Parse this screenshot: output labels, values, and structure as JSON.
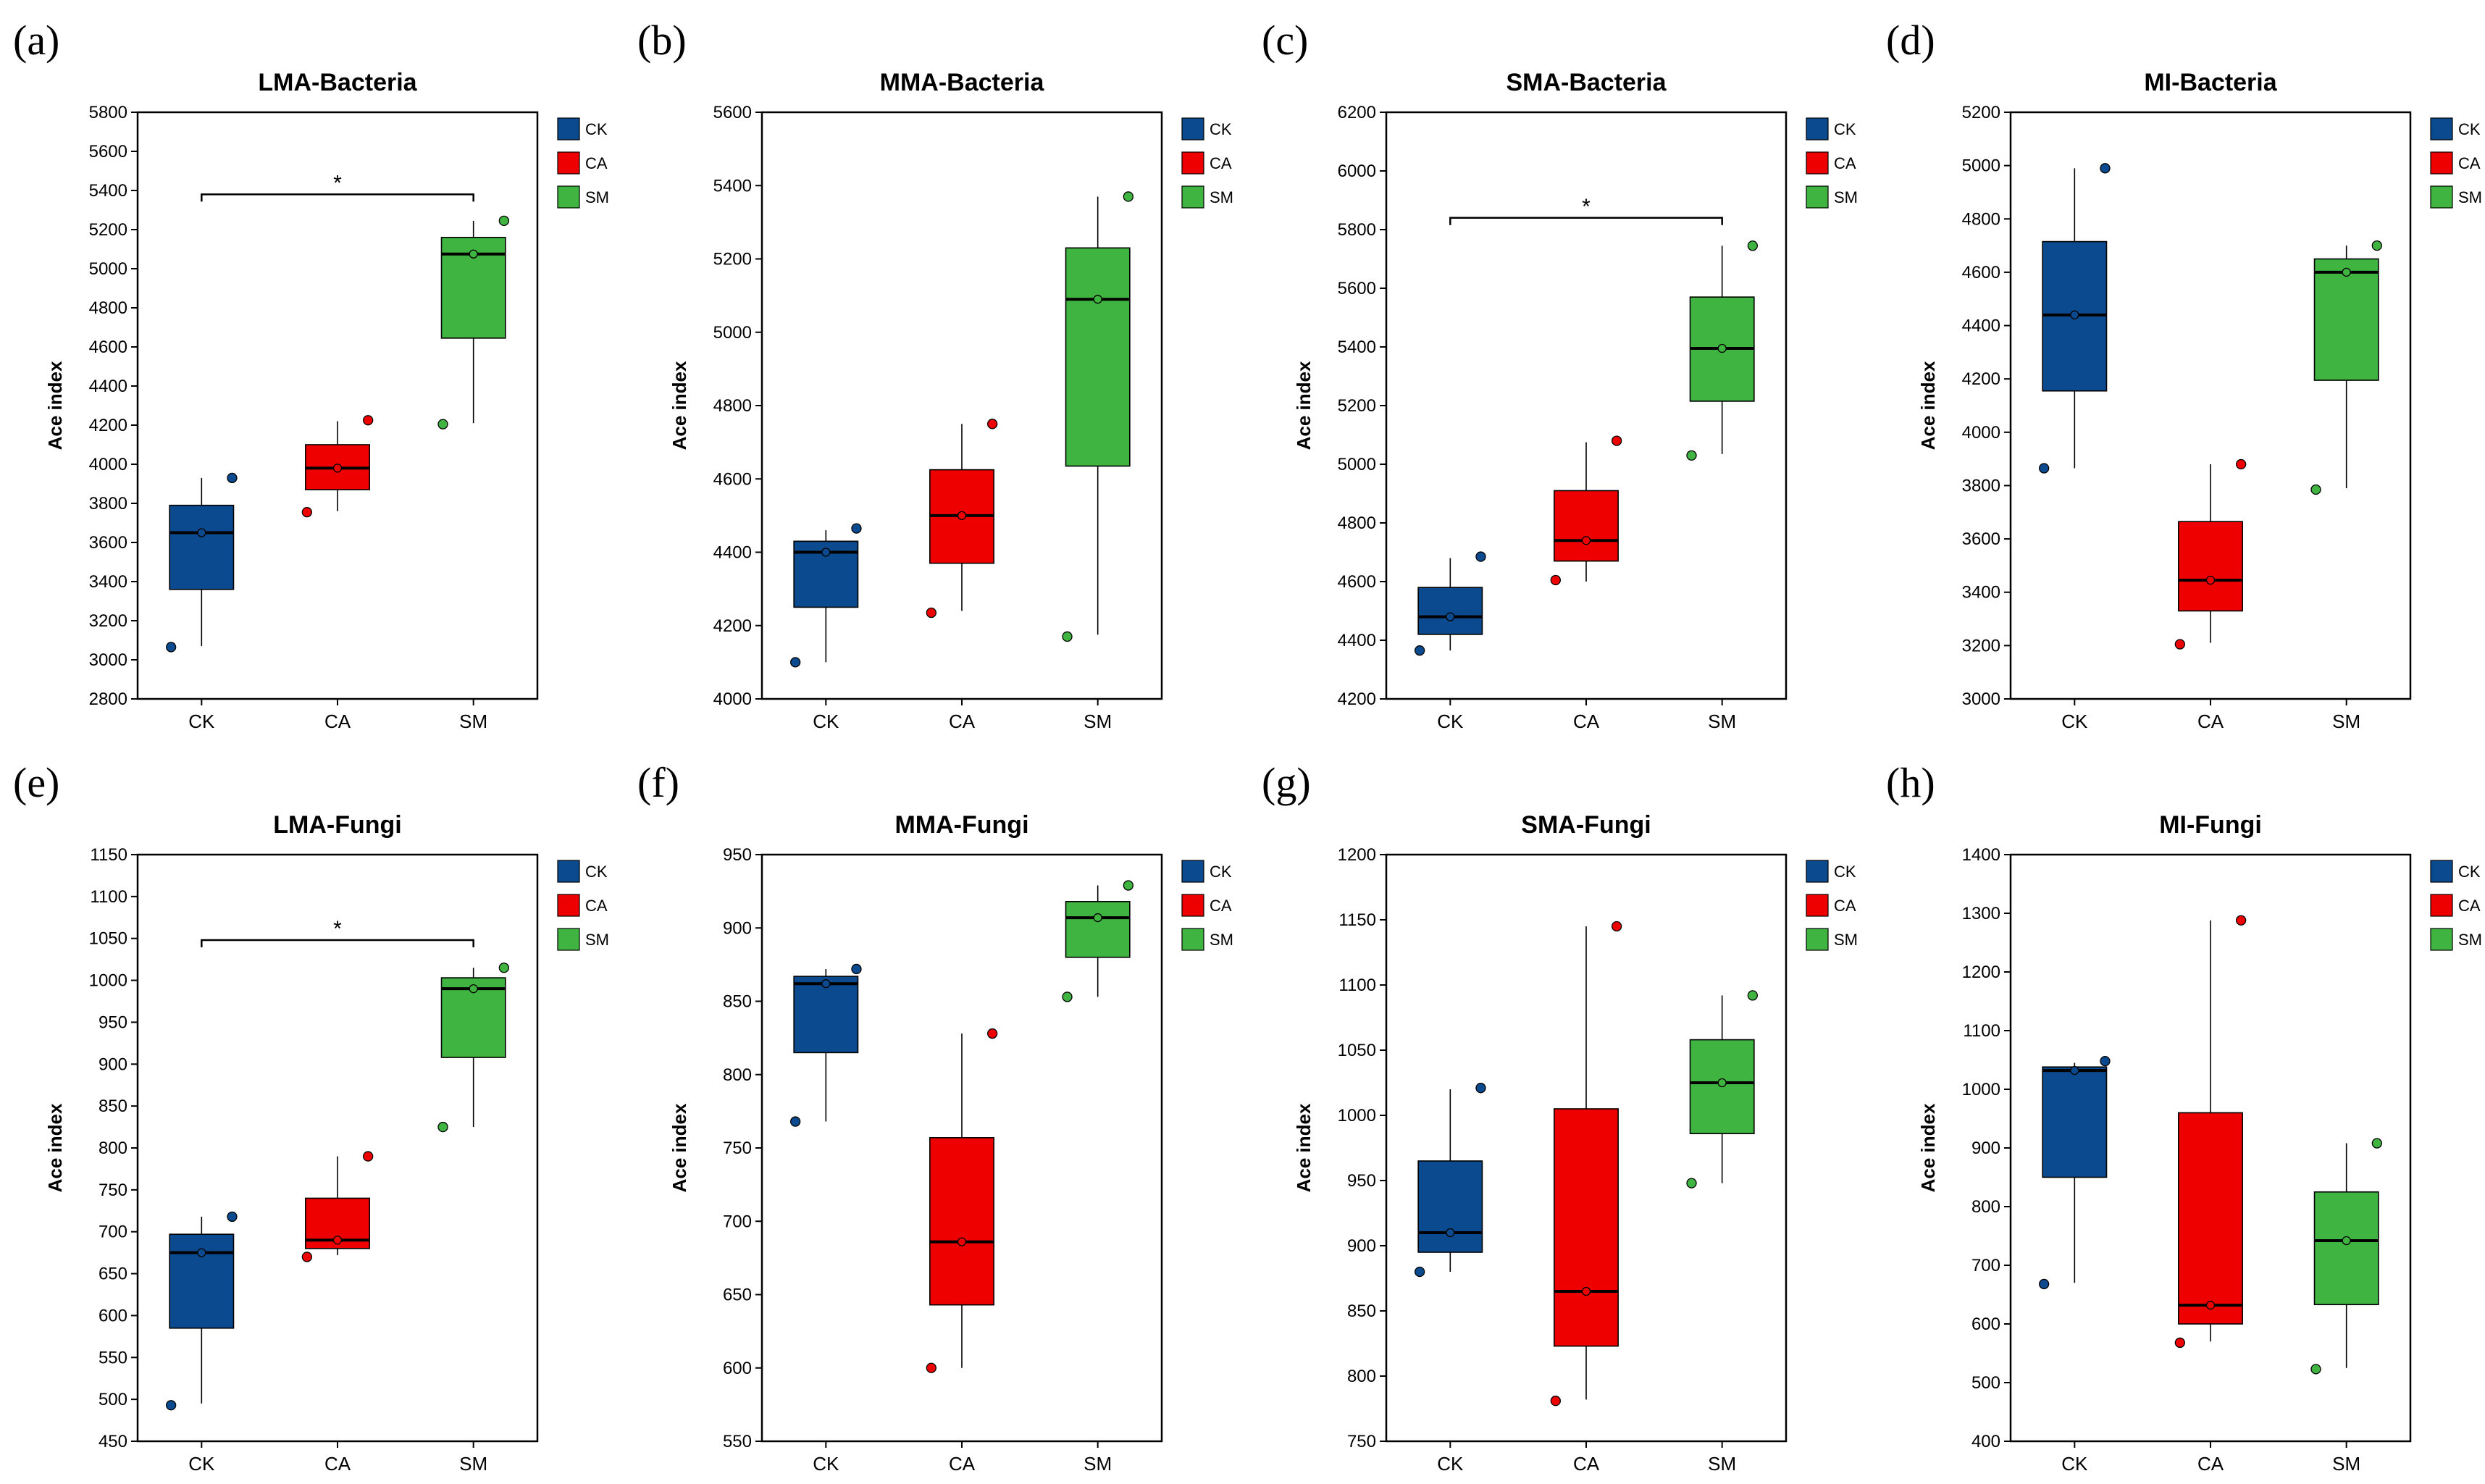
{
  "colors": {
    "CK": "#0b4a8e",
    "CA": "#ee0000",
    "SM": "#40b440"
  },
  "legend": [
    "CK",
    "CA",
    "SM"
  ],
  "chart_data": [
    {
      "panel": "(a)",
      "type": "box",
      "title": "LMA-Bacteria",
      "ylabel": "Ace index",
      "ylim": [
        2800,
        5800
      ],
      "yticks": [
        2800,
        3000,
        3200,
        3400,
        3600,
        3800,
        4000,
        4200,
        4400,
        4600,
        4800,
        5000,
        5200,
        5400,
        5600,
        5800
      ],
      "categories": [
        "CK",
        "CA",
        "SM"
      ],
      "boxes": [
        {
          "group": "CK",
          "whisker_low": 3070,
          "q1": 3360,
          "median": 3650,
          "q3": 3790,
          "whisker_high": 3930,
          "mean": 3650,
          "points": [
            3065,
            3930
          ]
        },
        {
          "group": "CA",
          "whisker_low": 3760,
          "q1": 3870,
          "median": 3980,
          "q3": 4100,
          "whisker_high": 4220,
          "mean": 3980,
          "points": [
            3755,
            4225
          ]
        },
        {
          "group": "SM",
          "whisker_low": 4210,
          "q1": 4645,
          "median": 5075,
          "q3": 5160,
          "whisker_high": 5245,
          "mean": 5075,
          "points": [
            4205,
            5245
          ]
        }
      ],
      "significance": [
        {
          "from": "CK",
          "to": "SM",
          "label": "*",
          "y": 5380
        }
      ]
    },
    {
      "panel": "(b)",
      "type": "box",
      "title": "MMA-Bacteria",
      "ylabel": "Ace index",
      "ylim": [
        4000,
        5600
      ],
      "yticks": [
        4000,
        4200,
        4400,
        4600,
        4800,
        5000,
        5200,
        5400,
        5600
      ],
      "categories": [
        "CK",
        "CA",
        "SM"
      ],
      "boxes": [
        {
          "group": "CK",
          "whisker_low": 4100,
          "q1": 4250,
          "median": 4400,
          "q3": 4430,
          "whisker_high": 4460,
          "mean": 4400,
          "points": [
            4100,
            4465
          ]
        },
        {
          "group": "CA",
          "whisker_low": 4240,
          "q1": 4370,
          "median": 4500,
          "q3": 4625,
          "whisker_high": 4750,
          "mean": 4500,
          "points": [
            4235,
            4750
          ]
        },
        {
          "group": "SM",
          "whisker_low": 4175,
          "q1": 4635,
          "median": 5090,
          "q3": 5230,
          "whisker_high": 5370,
          "mean": 5090,
          "points": [
            4170,
            5370
          ]
        }
      ],
      "significance": []
    },
    {
      "panel": "(c)",
      "type": "box",
      "title": "SMA-Bacteria",
      "ylabel": "Ace index",
      "ylim": [
        4200,
        6200
      ],
      "yticks": [
        4200,
        4400,
        4600,
        4800,
        5000,
        5200,
        5400,
        5600,
        5800,
        6000,
        6200
      ],
      "categories": [
        "CK",
        "CA",
        "SM"
      ],
      "boxes": [
        {
          "group": "CK",
          "whisker_low": 4365,
          "q1": 4420,
          "median": 4480,
          "q3": 4580,
          "whisker_high": 4680,
          "mean": 4480,
          "points": [
            4365,
            4685
          ]
        },
        {
          "group": "CA",
          "whisker_low": 4600,
          "q1": 4670,
          "median": 4740,
          "q3": 4910,
          "whisker_high": 5075,
          "mean": 4740,
          "points": [
            4605,
            5080
          ]
        },
        {
          "group": "SM",
          "whisker_low": 5035,
          "q1": 5215,
          "median": 5395,
          "q3": 5570,
          "whisker_high": 5745,
          "mean": 5395,
          "points": [
            5030,
            5745
          ]
        }
      ],
      "significance": [
        {
          "from": "CK",
          "to": "SM",
          "label": "*",
          "y": 5840
        }
      ]
    },
    {
      "panel": "(d)",
      "type": "box",
      "title": "MI-Bacteria",
      "ylabel": "Ace index",
      "ylim": [
        3000,
        5200
      ],
      "yticks": [
        3000,
        3200,
        3400,
        3600,
        3800,
        4000,
        4200,
        4400,
        4600,
        4800,
        5000,
        5200
      ],
      "categories": [
        "CK",
        "CA",
        "SM"
      ],
      "boxes": [
        {
          "group": "CK",
          "whisker_low": 3865,
          "q1": 4155,
          "median": 4440,
          "q3": 4715,
          "whisker_high": 4990,
          "mean": 4440,
          "points": [
            3865,
            4990
          ]
        },
        {
          "group": "CA",
          "whisker_low": 3210,
          "q1": 3330,
          "median": 3445,
          "q3": 3665,
          "whisker_high": 3880,
          "mean": 3445,
          "points": [
            3205,
            3880
          ]
        },
        {
          "group": "SM",
          "whisker_low": 3790,
          "q1": 4195,
          "median": 4600,
          "q3": 4650,
          "whisker_high": 4700,
          "mean": 4600,
          "points": [
            3785,
            4700
          ]
        }
      ],
      "significance": []
    },
    {
      "panel": "(e)",
      "type": "box",
      "title": "LMA-Fungi",
      "ylabel": "Ace index",
      "ylim": [
        450,
        1150
      ],
      "yticks": [
        450,
        500,
        550,
        600,
        650,
        700,
        750,
        800,
        850,
        900,
        950,
        1000,
        1050,
        1100,
        1150
      ],
      "categories": [
        "CK",
        "CA",
        "SM"
      ],
      "boxes": [
        {
          "group": "CK",
          "whisker_low": 495,
          "q1": 585,
          "median": 675,
          "q3": 697,
          "whisker_high": 718,
          "mean": 675,
          "points": [
            493,
            718
          ]
        },
        {
          "group": "CA",
          "whisker_low": 672,
          "q1": 680,
          "median": 690,
          "q3": 740,
          "whisker_high": 790,
          "mean": 690,
          "points": [
            670,
            790
          ]
        },
        {
          "group": "SM",
          "whisker_low": 825,
          "q1": 908,
          "median": 990,
          "q3": 1003,
          "whisker_high": 1015,
          "mean": 990,
          "points": [
            825,
            1015
          ]
        }
      ],
      "significance": [
        {
          "from": "CK",
          "to": "SM",
          "label": "*",
          "y": 1048
        }
      ]
    },
    {
      "panel": "(f)",
      "type": "box",
      "title": "MMA-Fungi",
      "ylabel": "Ace index",
      "ylim": [
        550,
        950
      ],
      "yticks": [
        550,
        600,
        650,
        700,
        750,
        800,
        850,
        900,
        950
      ],
      "categories": [
        "CK",
        "CA",
        "SM"
      ],
      "boxes": [
        {
          "group": "CK",
          "whisker_low": 768,
          "q1": 815,
          "median": 862,
          "q3": 867,
          "whisker_high": 872,
          "mean": 862,
          "points": [
            768,
            872
          ]
        },
        {
          "group": "CA",
          "whisker_low": 600,
          "q1": 643,
          "median": 686,
          "q3": 757,
          "whisker_high": 828,
          "mean": 686,
          "points": [
            600,
            828
          ]
        },
        {
          "group": "SM",
          "whisker_low": 853,
          "q1": 880,
          "median": 907,
          "q3": 918,
          "whisker_high": 929,
          "mean": 907,
          "points": [
            853,
            929
          ]
        }
      ],
      "significance": []
    },
    {
      "panel": "(g)",
      "type": "box",
      "title": "SMA-Fungi",
      "ylabel": "Ace index",
      "ylim": [
        750,
        1200
      ],
      "yticks": [
        750,
        800,
        850,
        900,
        950,
        1000,
        1050,
        1100,
        1150,
        1200
      ],
      "categories": [
        "CK",
        "CA",
        "SM"
      ],
      "boxes": [
        {
          "group": "CK",
          "whisker_low": 880,
          "q1": 895,
          "median": 910,
          "q3": 965,
          "whisker_high": 1020,
          "mean": 910,
          "points": [
            880,
            1021
          ]
        },
        {
          "group": "CA",
          "whisker_low": 782,
          "q1": 823,
          "median": 865,
          "q3": 1005,
          "whisker_high": 1145,
          "mean": 865,
          "points": [
            781,
            1145
          ]
        },
        {
          "group": "SM",
          "whisker_low": 948,
          "q1": 986,
          "median": 1025,
          "q3": 1058,
          "whisker_high": 1092,
          "mean": 1025,
          "points": [
            948,
            1092
          ]
        }
      ],
      "significance": []
    },
    {
      "panel": "(h)",
      "type": "box",
      "title": "MI-Fungi",
      "ylabel": "Ace index",
      "ylim": [
        400,
        1400
      ],
      "yticks": [
        400,
        500,
        600,
        700,
        800,
        900,
        1000,
        1100,
        1200,
        1300,
        1400
      ],
      "categories": [
        "CK",
        "CA",
        "SM"
      ],
      "boxes": [
        {
          "group": "CK",
          "whisker_low": 670,
          "q1": 850,
          "median": 1032,
          "q3": 1038,
          "whisker_high": 1045,
          "mean": 1032,
          "points": [
            668,
            1048
          ]
        },
        {
          "group": "CA",
          "whisker_low": 570,
          "q1": 600,
          "median": 632,
          "q3": 960,
          "whisker_high": 1288,
          "mean": 632,
          "points": [
            568,
            1288
          ]
        },
        {
          "group": "SM",
          "whisker_low": 525,
          "q1": 633,
          "median": 742,
          "q3": 825,
          "whisker_high": 908,
          "mean": 742,
          "points": [
            523,
            908
          ]
        }
      ],
      "significance": []
    }
  ]
}
